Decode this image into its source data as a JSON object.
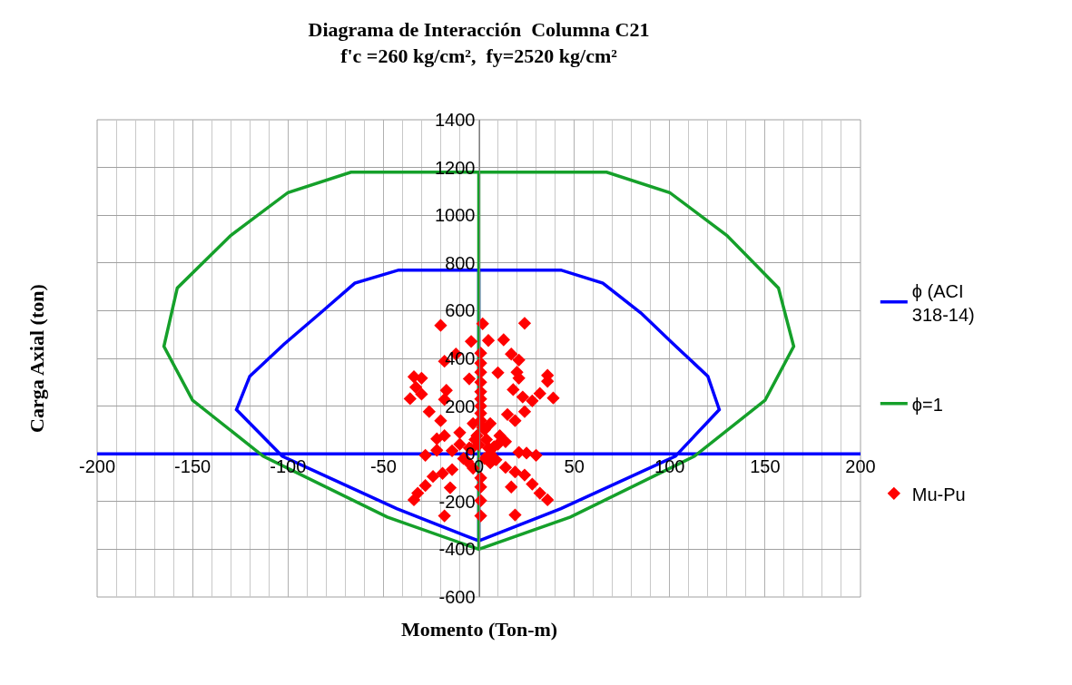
{
  "chart_data": {
    "type": "line",
    "title": "Diagrama de Interacción  Columna C21",
    "subtitle": "f'c =260 kg/cm²,  fy=2520 kg/cm²",
    "xlabel": "Momento (Ton-m)",
    "ylabel": "Carga Axial (ton)",
    "xlim": [
      -200,
      200
    ],
    "xticks": [
      -200,
      -150,
      -100,
      -50,
      0,
      50,
      100,
      150,
      200
    ],
    "ylim": [
      -600,
      1400
    ],
    "yticks": [
      -600,
      -400,
      -200,
      0,
      200,
      400,
      600,
      800,
      1000,
      1200,
      1400
    ],
    "grid": true,
    "legend": "right",
    "line_style": "solid",
    "series": [
      {
        "name": "ϕ (ACI 318-14)",
        "color": "#0000ff",
        "marker": "none",
        "x": [
          0,
          0,
          43,
          65,
          85,
          102,
          120,
          126,
          103,
          43,
          0,
          -43,
          -103,
          -127,
          -120,
          -102,
          -83,
          -65,
          -42,
          0
        ],
        "values": [
          -365,
          770,
          770,
          715,
          590,
          460,
          325,
          185,
          -10,
          -230,
          -365,
          -230,
          -10,
          185,
          325,
          460,
          590,
          715,
          770,
          770
        ]
      },
      {
        "color": "#0000ff",
        "marker": "none",
        "x": [
          -200,
          200
        ],
        "values": [
          0,
          0
        ]
      },
      {
        "name": "ϕ=1",
        "color": "#15a02a",
        "marker": "none",
        "x": [
          0,
          0,
          67,
          100,
          130,
          157,
          165,
          150,
          113,
          48,
          0,
          -48,
          -113,
          -150,
          -165,
          -158,
          -130,
          -100,
          -67,
          0
        ],
        "values": [
          -400,
          1180,
          1180,
          1095,
          915,
          695,
          450,
          225,
          -10,
          -265,
          -400,
          -265,
          -10,
          225,
          450,
          695,
          915,
          1095,
          1180,
          1180
        ]
      },
      {
        "name": "Mu-Pu",
        "type": "scatter",
        "color": "#ff0000",
        "marker": "diamond",
        "x": [
          -20,
          2,
          24,
          -4,
          5,
          13,
          -12,
          -18,
          1,
          1,
          17,
          21,
          10,
          20,
          21,
          -5,
          1,
          -34,
          -30,
          -33,
          -30,
          -36,
          -17,
          -18,
          18,
          23,
          28,
          32,
          36,
          36,
          39,
          24,
          15,
          -26,
          -20,
          19,
          -28,
          -22,
          -14,
          21,
          25,
          30,
          -19,
          -14,
          -24,
          -28,
          -32,
          -34,
          -15,
          -18,
          1,
          1,
          17,
          14,
          19,
          24,
          28,
          32,
          36,
          19,
          9,
          -6,
          -3,
          6,
          -18,
          -22,
          -10,
          11,
          14,
          1,
          1,
          6,
          0,
          -5,
          5,
          -1,
          3,
          1,
          1,
          1,
          1,
          1,
          1,
          2,
          -2,
          4,
          -4,
          8,
          -8,
          3,
          -3,
          10,
          -10,
          6
        ],
        "values": [
          538,
          545,
          547,
          471,
          475,
          478,
          418,
          388,
          422,
          380,
          418,
          393,
          340,
          342,
          317,
          314,
          342,
          323,
          317,
          279,
          250,
          231,
          266,
          228,
          269,
          238,
          222,
          253,
          329,
          304,
          234,
          177,
          165,
          177,
          139,
          139,
          -6,
          15,
          13,
          6,
          3,
          -6,
          -82,
          -66,
          -95,
          -133,
          -165,
          -193,
          -142,
          -260,
          -260,
          -196,
          -139,
          -57,
          -76,
          -89,
          -127,
          -165,
          -193,
          -256,
          -25,
          -32,
          127,
          127,
          76,
          63,
          89,
          76,
          51,
          -101,
          -139,
          -38,
          38,
          25,
          25,
          76,
          101,
          300,
          260,
          230,
          200,
          170,
          140,
          110,
          60,
          60,
          20,
          30,
          -20,
          -20,
          -60,
          40,
          40,
          0
        ]
      }
    ]
  }
}
